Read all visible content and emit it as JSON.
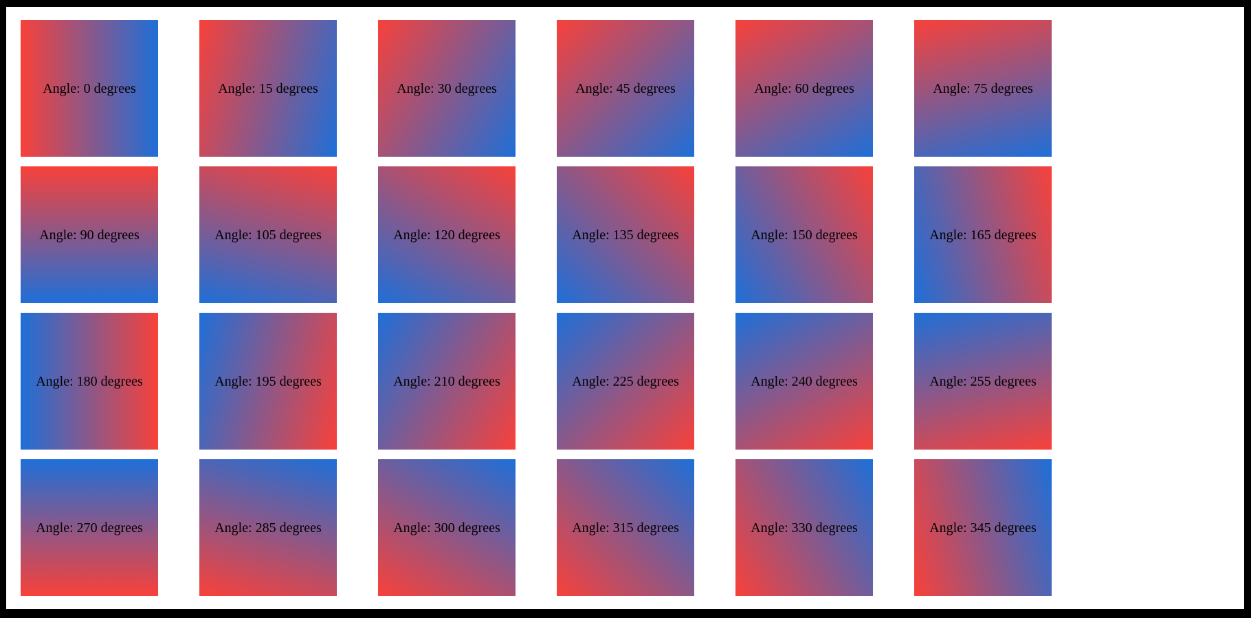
{
  "figure": {
    "background_color": "#ffffff",
    "frame_color": "#000000",
    "label_color": "#000000",
    "gradient_start_color": "#f8413a",
    "gradient_end_color": "#1e6fd8",
    "gradient_note": "linear gradient from red to blue; tile angle 0 = left-to-right, rotating clockwise (css angle = tile angle + 90deg)"
  },
  "tiles": [
    {
      "angle": 0,
      "label": "Angle: 0 degrees"
    },
    {
      "angle": 15,
      "label": "Angle: 15 degrees"
    },
    {
      "angle": 30,
      "label": "Angle: 30 degrees"
    },
    {
      "angle": 45,
      "label": "Angle: 45 degrees"
    },
    {
      "angle": 60,
      "label": "Angle: 60 degrees"
    },
    {
      "angle": 75,
      "label": "Angle: 75 degrees"
    },
    {
      "angle": 90,
      "label": "Angle: 90 degrees"
    },
    {
      "angle": 105,
      "label": "Angle: 105 degrees"
    },
    {
      "angle": 120,
      "label": "Angle: 120 degrees"
    },
    {
      "angle": 135,
      "label": "Angle: 135 degrees"
    },
    {
      "angle": 150,
      "label": "Angle: 150 degrees"
    },
    {
      "angle": 165,
      "label": "Angle: 165 degrees"
    },
    {
      "angle": 180,
      "label": "Angle: 180 degrees"
    },
    {
      "angle": 195,
      "label": "Angle: 195 degrees"
    },
    {
      "angle": 210,
      "label": "Angle: 210 degrees"
    },
    {
      "angle": 225,
      "label": "Angle: 225 degrees"
    },
    {
      "angle": 240,
      "label": "Angle: 240 degrees"
    },
    {
      "angle": 255,
      "label": "Angle: 255 degrees"
    },
    {
      "angle": 270,
      "label": "Angle: 270 degrees"
    },
    {
      "angle": 285,
      "label": "Angle: 285 degrees"
    },
    {
      "angle": 300,
      "label": "Angle: 300 degrees"
    },
    {
      "angle": 315,
      "label": "Angle: 315 degrees"
    },
    {
      "angle": 330,
      "label": "Angle: 330 degrees"
    },
    {
      "angle": 345,
      "label": "Angle: 345 degrees"
    }
  ]
}
